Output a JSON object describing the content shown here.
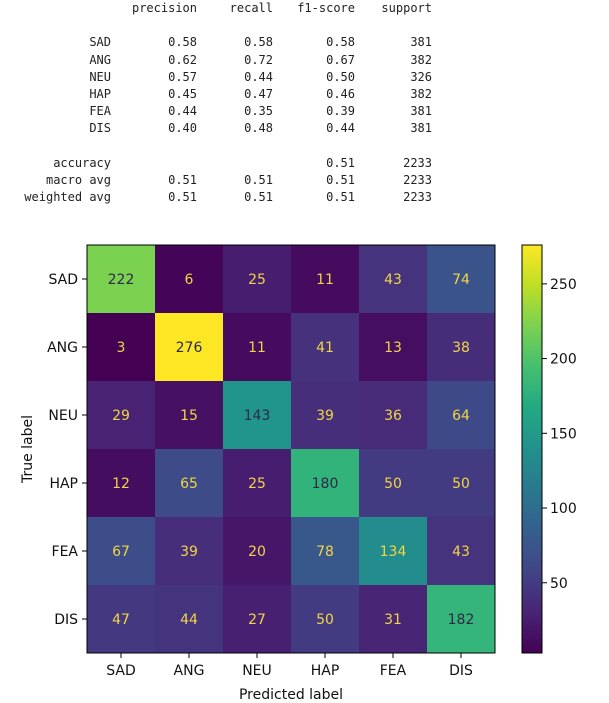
{
  "report": {
    "headers": [
      "precision",
      "recall",
      "f1-score",
      "support"
    ],
    "rows": [
      {
        "label": "SAD",
        "precision": "0.58",
        "recall": "0.58",
        "f1": "0.58",
        "support": "381"
      },
      {
        "label": "ANG",
        "precision": "0.62",
        "recall": "0.72",
        "f1": "0.67",
        "support": "382"
      },
      {
        "label": "NEU",
        "precision": "0.57",
        "recall": "0.44",
        "f1": "0.50",
        "support": "326"
      },
      {
        "label": "HAP",
        "precision": "0.45",
        "recall": "0.47",
        "f1": "0.46",
        "support": "382"
      },
      {
        "label": "FEA",
        "precision": "0.44",
        "recall": "0.35",
        "f1": "0.39",
        "support": "381"
      },
      {
        "label": "DIS",
        "precision": "0.40",
        "recall": "0.48",
        "f1": "0.44",
        "support": "381"
      }
    ],
    "summary": [
      {
        "label": "accuracy",
        "precision": "",
        "recall": "",
        "f1": "0.51",
        "support": "2233"
      },
      {
        "label": "macro avg",
        "precision": "0.51",
        "recall": "0.51",
        "f1": "0.51",
        "support": "2233"
      },
      {
        "label": "weighted avg",
        "precision": "0.51",
        "recall": "0.51",
        "f1": "0.51",
        "support": "2233"
      }
    ]
  },
  "chart_data": {
    "type": "heatmap",
    "colormap": "viridis",
    "x_categories": [
      "SAD",
      "ANG",
      "NEU",
      "HAP",
      "FEA",
      "DIS"
    ],
    "y_categories": [
      "SAD",
      "ANG",
      "NEU",
      "HAP",
      "FEA",
      "DIS"
    ],
    "values": [
      [
        222,
        6,
        25,
        11,
        43,
        74
      ],
      [
        3,
        276,
        11,
        41,
        13,
        38
      ],
      [
        29,
        15,
        143,
        39,
        36,
        64
      ],
      [
        12,
        65,
        25,
        180,
        50,
        50
      ],
      [
        67,
        39,
        20,
        78,
        134,
        43
      ],
      [
        47,
        44,
        27,
        50,
        31,
        182
      ]
    ],
    "xlabel": "Predicted label",
    "ylabel": "True label",
    "vmin": 3,
    "vmax": 276,
    "colorbar_ticks": [
      50,
      100,
      150,
      200,
      250
    ]
  }
}
